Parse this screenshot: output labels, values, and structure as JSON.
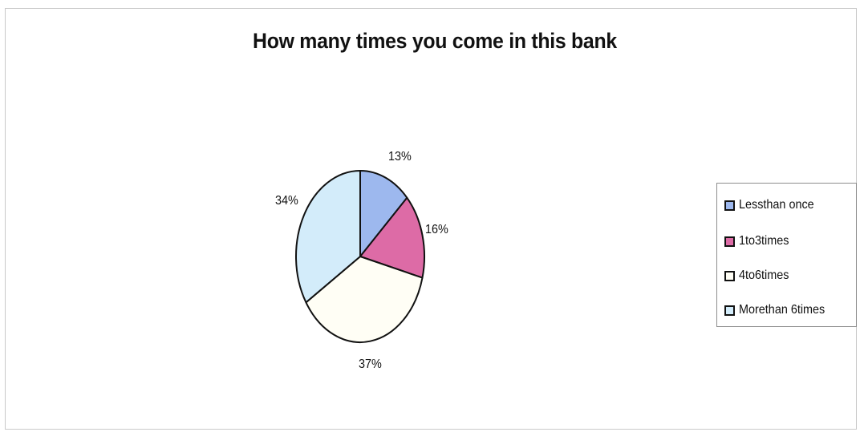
{
  "chart_data": {
    "type": "pie",
    "title": "How many times you come in this bank",
    "categories": [
      "Less than once",
      "1 to 3 times",
      "4 to 6 times",
      "More than 6 times"
    ],
    "values": [
      13,
      16,
      37,
      34
    ],
    "value_labels": [
      "13%",
      "16%",
      "37%",
      "34%"
    ],
    "colors": [
      "#9db8ee",
      "#dd6ba6",
      "#fffef5",
      "#d3ecfa"
    ],
    "legend": {
      "position": "right",
      "entries": [
        "Lessthan once",
        "1to3times",
        "4to6times",
        "Morethan 6times"
      ]
    }
  }
}
